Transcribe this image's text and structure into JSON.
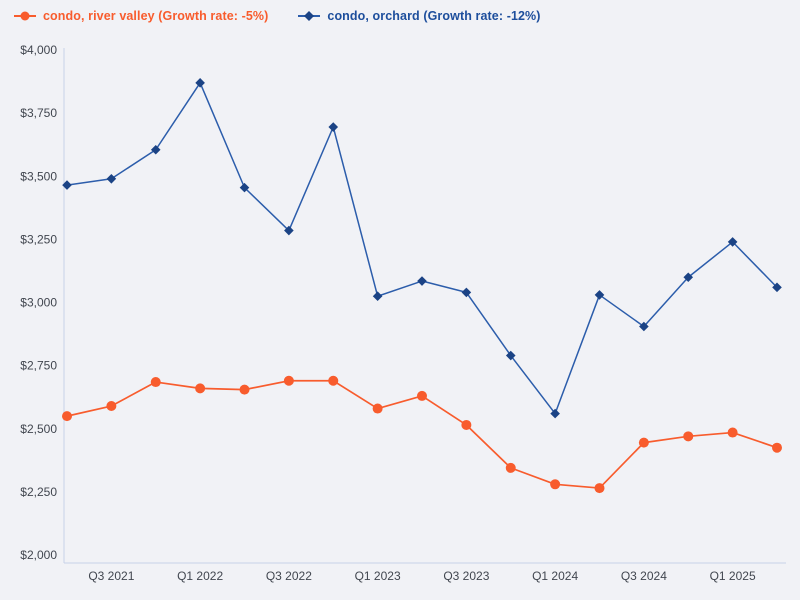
{
  "page": {
    "background_color": "#f1f2f6"
  },
  "legend": {
    "position": "top-left",
    "items": [
      {
        "id": "river-valley",
        "label": "condo, river valley (Growth rate: -5%)",
        "color": "#f85c2d",
        "marker": "circle"
      },
      {
        "id": "orchard",
        "label": "condo, orchard (Growth rate: -12%)",
        "color": "#1d4e9c",
        "marker": "diamond"
      }
    ]
  },
  "axis_style": {
    "axis_line_color": "#c7d1e8",
    "tick_label_color": "#41464f"
  },
  "chart_data": {
    "type": "line",
    "title": "",
    "xlabel": "",
    "ylabel": "",
    "grid": false,
    "legend_position": "top-left",
    "x": [
      "Q2 2021",
      "Q3 2021",
      "Q4 2021",
      "Q1 2022",
      "Q2 2022",
      "Q3 2022",
      "Q4 2022",
      "Q1 2023",
      "Q2 2023",
      "Q3 2023",
      "Q4 2023",
      "Q1 2024",
      "Q2 2024",
      "Q3 2024",
      "Q4 2024",
      "Q1 2025",
      "Q2 2025"
    ],
    "x_tick_labels": [
      "Q3 2021",
      "Q1 2022",
      "Q3 2022",
      "Q1 2023",
      "Q3 2023",
      "Q1 2024",
      "Q3 2024",
      "Q1 2025"
    ],
    "x_tick_indices": [
      1,
      3,
      5,
      7,
      9,
      11,
      13,
      15
    ],
    "ylim": [
      2000,
      4000
    ],
    "y_ticks": [
      2000,
      2250,
      2500,
      2750,
      3000,
      3250,
      3500,
      3750,
      4000
    ],
    "y_tick_prefix": "$",
    "series": [
      {
        "name": "condo, river valley",
        "growth_rate": "-5%",
        "marker": "circle",
        "line_color": "#f85c2d",
        "marker_color": "#f85c2d",
        "values": [
          2550,
          2590,
          2685,
          2660,
          2655,
          2690,
          2690,
          2580,
          2630,
          2515,
          2345,
          2280,
          2265,
          2445,
          2470,
          2485,
          2425
        ]
      },
      {
        "name": "condo, orchard",
        "growth_rate": "-12%",
        "marker": "diamond",
        "line_color": "#2c5dab",
        "marker_color": "#1b4385",
        "values": [
          3465,
          3490,
          3605,
          3870,
          3455,
          3285,
          3695,
          3025,
          3085,
          3040,
          2790,
          2560,
          3030,
          2905,
          3100,
          3240,
          3060
        ]
      }
    ]
  }
}
